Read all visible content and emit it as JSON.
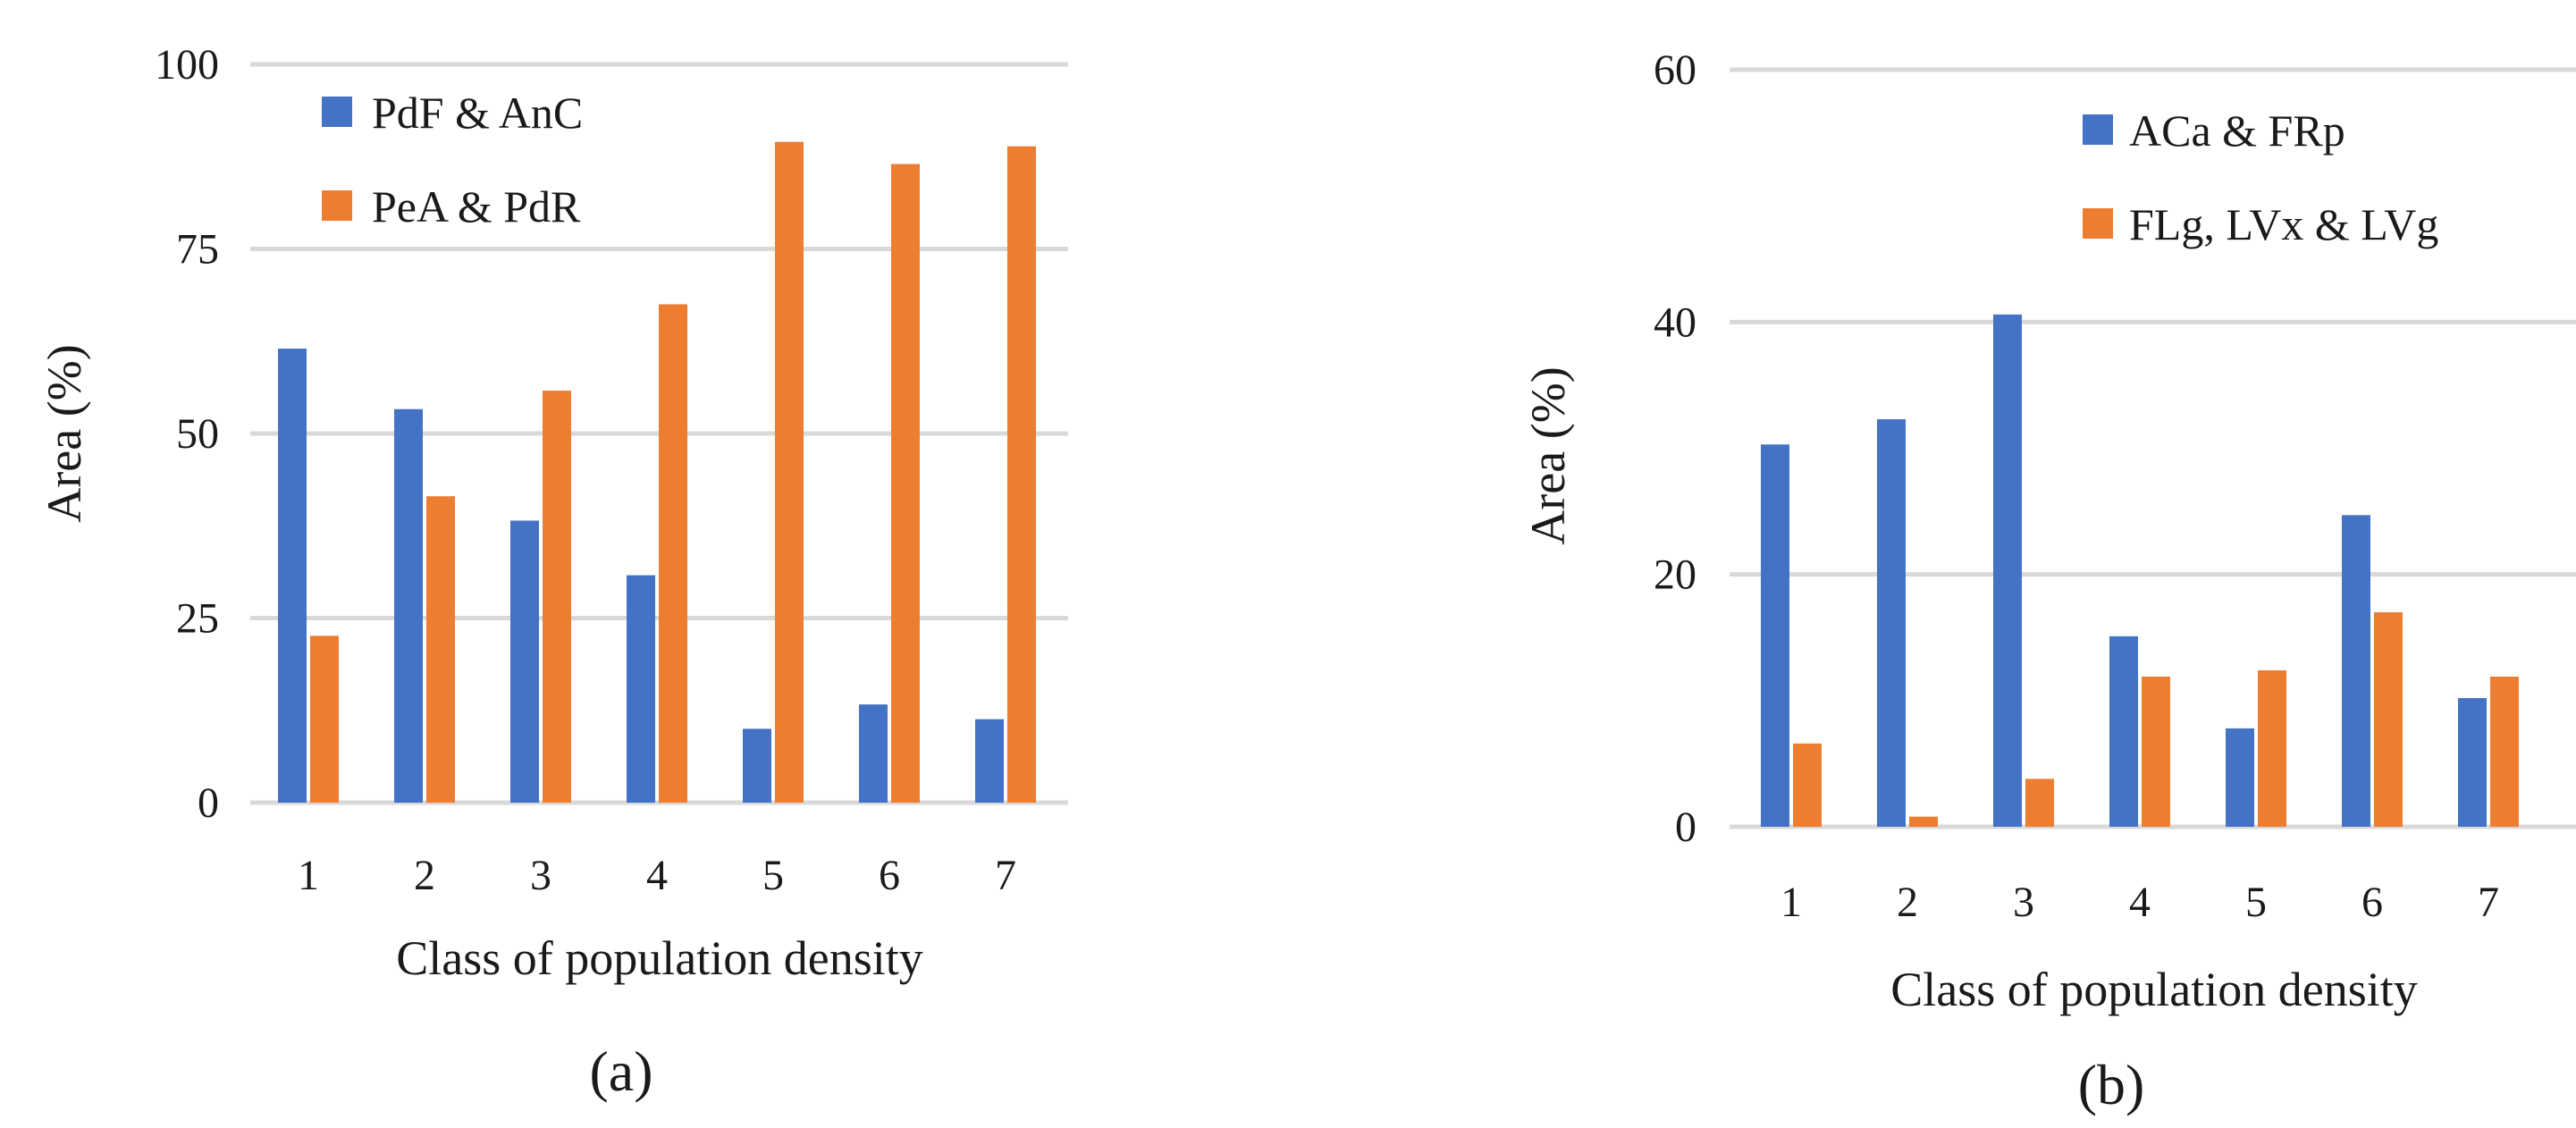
{
  "chart_data": [
    {
      "type": "bar",
      "panel_label": "(a)",
      "categories": [
        "1",
        "2",
        "3",
        "4",
        "5",
        "6",
        "7"
      ],
      "series": [
        {
          "name": "PdF & AnC",
          "color": "#4472C4",
          "values": [
            61.5,
            53.3,
            38.2,
            30.8,
            10.0,
            13.3,
            11.3
          ]
        },
        {
          "name": "PeA & PdR",
          "color": "#ED7D31",
          "values": [
            22.6,
            41.5,
            55.8,
            67.5,
            89.5,
            86.5,
            88.9
          ]
        }
      ],
      "xlabel": "Class of population density",
      "ylabel": "Area (%)",
      "ylim": [
        0,
        100
      ],
      "yticks": [
        "0",
        "25",
        "50",
        "75",
        "100"
      ],
      "grid": true,
      "legend_position": "top-left"
    },
    {
      "type": "bar",
      "panel_label": "(b)",
      "categories": [
        "1",
        "2",
        "3",
        "4",
        "5",
        "6",
        "7"
      ],
      "series": [
        {
          "name": "ACa & FRp",
          "color": "#4472C4",
          "values": [
            30.3,
            32.3,
            40.6,
            15.1,
            7.8,
            24.7,
            10.2
          ]
        },
        {
          "name": "FLg, LVx & LVg",
          "color": "#ED7D31",
          "values": [
            6.6,
            0.8,
            3.8,
            11.9,
            12.4,
            17.0,
            11.9
          ]
        }
      ],
      "xlabel": "Class of population density",
      "ylabel": "Area (%)",
      "ylim": [
        0,
        60
      ],
      "yticks": [
        "0",
        "20",
        "40",
        "60"
      ],
      "grid": true,
      "legend_position": "top-right"
    }
  ]
}
